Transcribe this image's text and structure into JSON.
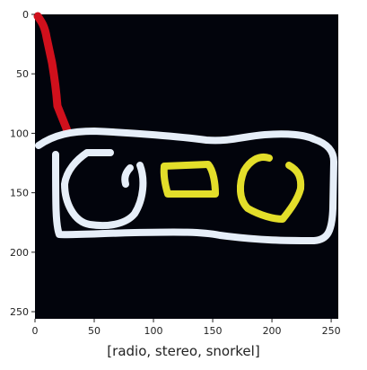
{
  "image": {
    "background_color": "#02040c",
    "axis_range": {
      "x": [
        0,
        256
      ],
      "y": [
        0,
        256
      ]
    },
    "x_ticks": [
      "0",
      "50",
      "100",
      "150",
      "200",
      "250"
    ],
    "y_ticks": [
      "0",
      "50",
      "100",
      "150",
      "200",
      "250"
    ],
    "strokes": [
      {
        "name": "red-stroke",
        "color": "#d0101c"
      },
      {
        "name": "white-outline",
        "color": "#e6eef8"
      },
      {
        "name": "white-dial",
        "color": "#e6eef8"
      },
      {
        "name": "white-knob",
        "color": "#e6eef8"
      },
      {
        "name": "yellow-display",
        "color": "#e3de2a"
      },
      {
        "name": "yellow-speaker",
        "color": "#e3de2a"
      }
    ]
  },
  "caption": "[radio, stereo, snorkel]"
}
